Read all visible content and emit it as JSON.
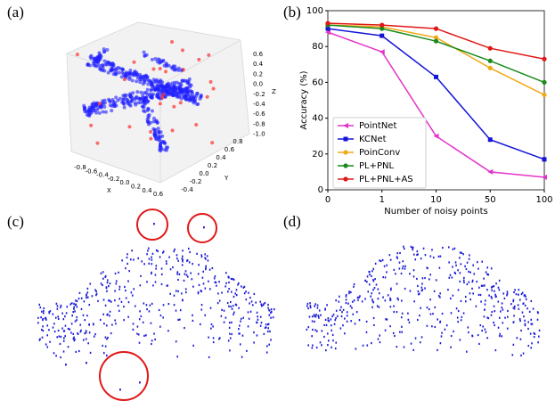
{
  "panel_labels": [
    "(a)",
    "(b)",
    "(c)",
    "(d)"
  ],
  "panel_a": {
    "x_label": "X",
    "y_label": "Y",
    "z_label": "Z",
    "x_ticks": [
      "-0.8",
      "-0.6",
      "-0.4",
      "-0.2",
      "0.0",
      "0.2",
      "0.4",
      "0.6"
    ],
    "y_ticks": [
      "-0.4",
      "-0.2",
      "0.0",
      "0.2",
      "0.4",
      "0.6",
      "0.8"
    ],
    "z_ticks": [
      "0.6",
      "0.4",
      "0.2",
      "0.0",
      "-0.2",
      "-0.4",
      "-0.6",
      "-0.8",
      "-1.0"
    ]
  },
  "chart_data": {
    "type": "line",
    "x_label": "Number of noisy points",
    "y_label": "Accuracy (%)",
    "categories": [
      "0",
      "1",
      "10",
      "50",
      "100"
    ],
    "ylim": [
      0,
      100
    ],
    "yticks": [
      0,
      20,
      40,
      60,
      80,
      100
    ],
    "legend": "lower left",
    "grid": false,
    "series": [
      {
        "name": "PointNet",
        "color": "#e533c8",
        "marker": "triangle-left",
        "values": [
          88,
          77,
          30,
          10,
          7
        ]
      },
      {
        "name": "KCNet",
        "color": "#1414d8",
        "marker": "square",
        "values": [
          90,
          86,
          63,
          28,
          17
        ]
      },
      {
        "name": "PoinConv",
        "color": "#f0a818",
        "marker": "circle",
        "values": [
          92,
          91,
          85,
          68,
          53
        ]
      },
      {
        "name": "PL+PNL",
        "color": "#1a8a1a",
        "marker": "circle",
        "values": [
          92,
          90,
          83,
          72,
          60
        ]
      },
      {
        "name": "PL+PNL+AS",
        "color": "#e01818",
        "marker": "circle",
        "values": [
          93,
          92,
          90,
          79,
          73
        ]
      }
    ]
  }
}
